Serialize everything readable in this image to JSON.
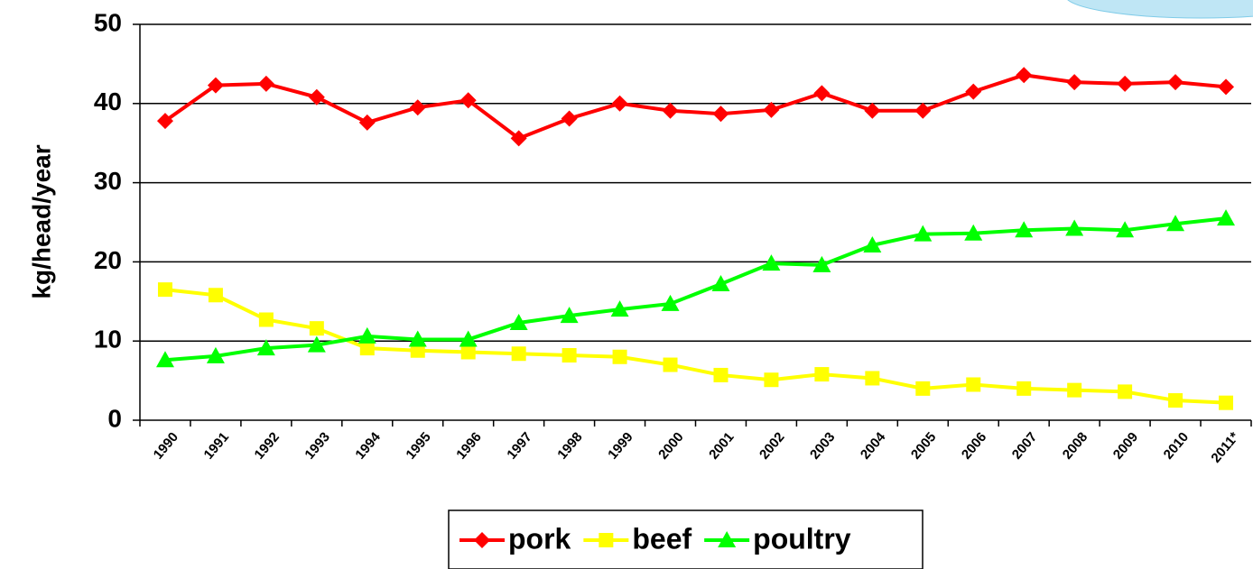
{
  "chart_data": {
    "type": "line",
    "y_label": "kg/head/year",
    "categories": [
      "1990",
      "1991",
      "1992",
      "1993",
      "1994",
      "1995",
      "1996",
      "1997",
      "1998",
      "1999",
      "2000",
      "2001",
      "2002",
      "2003",
      "2004",
      "2005",
      "2006",
      "2007",
      "2008",
      "2009",
      "2010",
      "2011*"
    ],
    "series": [
      {
        "name": "pork",
        "color": "#ff0000",
        "marker": "diamond",
        "values": [
          37.8,
          42.3,
          42.5,
          40.8,
          37.6,
          39.5,
          40.4,
          35.6,
          38.1,
          40.0,
          39.1,
          38.7,
          39.2,
          41.3,
          39.1,
          39.1,
          41.5,
          43.6,
          42.7,
          42.5,
          42.7,
          42.1
        ]
      },
      {
        "name": "beef",
        "color": "#ffff00",
        "marker": "square",
        "values": [
          16.5,
          15.8,
          12.7,
          11.6,
          9.1,
          8.8,
          8.6,
          8.4,
          8.2,
          8.0,
          7.0,
          5.7,
          5.1,
          5.8,
          5.3,
          4.0,
          4.5,
          4.0,
          3.8,
          3.6,
          2.5,
          2.2
        ]
      },
      {
        "name": "poultry",
        "color": "#00ff00",
        "marker": "triangle",
        "values": [
          7.6,
          8.1,
          9.1,
          9.5,
          10.6,
          10.2,
          10.2,
          12.3,
          13.2,
          14.0,
          14.7,
          17.2,
          19.8,
          19.6,
          22.1,
          23.5,
          23.6,
          24.0,
          24.2,
          24.0,
          24.8,
          25.5
        ]
      }
    ],
    "ylim": [
      0,
      50
    ],
    "yticks": [
      0,
      10,
      20,
      30,
      40,
      50
    ],
    "grid": true,
    "legend": "bottom"
  }
}
